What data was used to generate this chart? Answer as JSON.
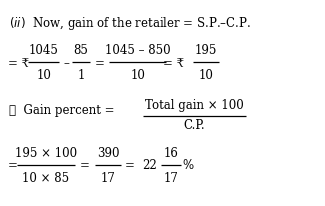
{
  "background_color": "#ffffff",
  "figsize": [
    3.25,
    2.07
  ],
  "dpi": 100,
  "title_line": "(ii)  Now, gain of the retailer = S.P.–C.P.",
  "rupee": "₹",
  "therefore": "∴",
  "fs": 8.5
}
